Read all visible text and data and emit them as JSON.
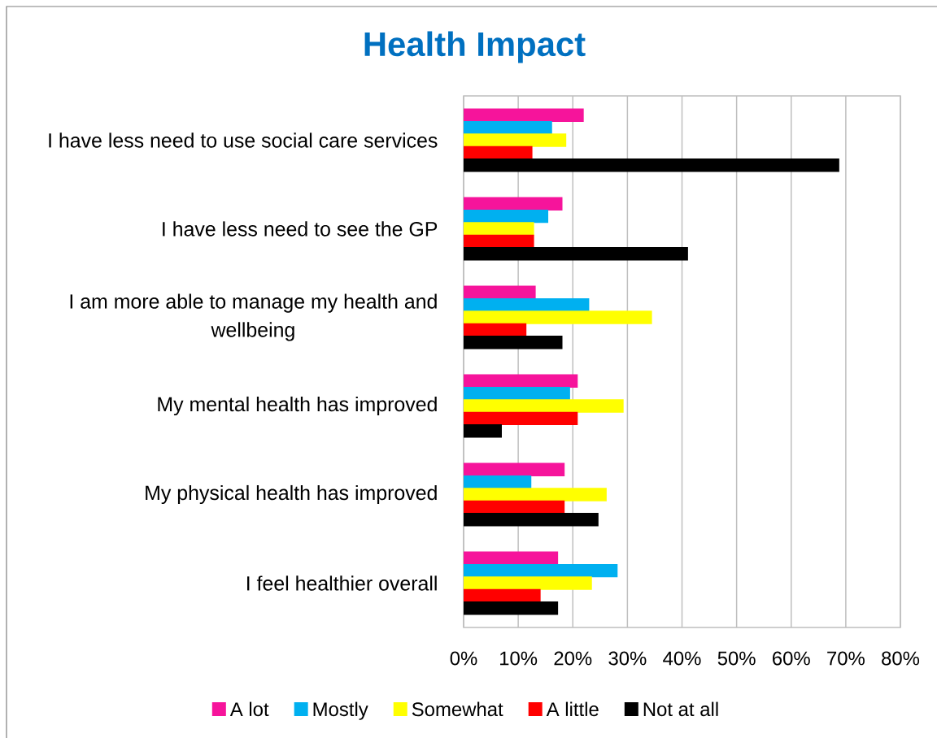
{
  "chart_data": {
    "type": "bar",
    "orientation": "horizontal",
    "title": "Health Impact",
    "categories": [
      "I have less need to use social care services",
      "I have less need to see the GP",
      "I am more able to manage my health and wellbeing",
      "My mental health has improved",
      "My physical health has improved",
      "I feel healthier overall"
    ],
    "series": [
      {
        "name": "A lot",
        "color": "#f6149b",
        "values": [
          22.0,
          18.1,
          13.2,
          20.9,
          18.5,
          17.3
        ]
      },
      {
        "name": "Mostly",
        "color": "#00b0f0",
        "values": [
          16.2,
          15.5,
          23.0,
          19.5,
          12.4,
          28.2
        ]
      },
      {
        "name": "Somewhat",
        "color": "#ffff00",
        "values": [
          18.8,
          12.9,
          34.5,
          29.3,
          26.2,
          23.5
        ]
      },
      {
        "name": "A little",
        "color": "#ff0000",
        "values": [
          12.6,
          12.9,
          11.5,
          20.9,
          18.5,
          14.1
        ]
      },
      {
        "name": "Not at all",
        "color": "#000000",
        "values": [
          68.8,
          41.1,
          18.1,
          7.0,
          24.7,
          17.3
        ]
      }
    ],
    "xlim": [
      0,
      80
    ],
    "xticks": [
      {
        "value": 0,
        "label": "0%"
      },
      {
        "value": 10,
        "label": "10%"
      },
      {
        "value": 20,
        "label": "20%"
      },
      {
        "value": 30,
        "label": "30%"
      },
      {
        "value": 40,
        "label": "40%"
      },
      {
        "value": 50,
        "label": "50%"
      },
      {
        "value": 60,
        "label": "60%"
      },
      {
        "value": 70,
        "label": "70%"
      },
      {
        "value": 80,
        "label": "80%"
      }
    ],
    "grid": "x",
    "legend": "bottom"
  }
}
